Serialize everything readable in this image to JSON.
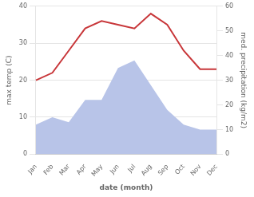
{
  "chart_data": {
    "type": "line",
    "categories": [
      "Jan",
      "Feb",
      "Mar",
      "Apr",
      "May",
      "Jun",
      "Jul",
      "Aug",
      "Sep",
      "Oct",
      "Nov",
      "Dec"
    ],
    "series": [
      {
        "type": "area",
        "color": "#b8c4e8",
        "axis": "y2",
        "values": [
          12,
          15,
          13,
          22,
          22,
          35,
          38,
          28,
          18,
          12,
          10,
          10
        ]
      },
      {
        "type": "line",
        "color": "#c8373a",
        "values": [
          20,
          22,
          28,
          34,
          36,
          35,
          34,
          38,
          35,
          28,
          23,
          23
        ]
      }
    ],
    "xlabel": "date (month)",
    "ylabel": "max temp (C)",
    "y2label": "med. precipitation (kg/m2)",
    "ylim": [
      0,
      40
    ],
    "yticks": [
      0,
      10,
      20,
      30,
      40
    ],
    "y2lim": [
      0,
      60
    ],
    "y2ticks": [
      0,
      10,
      20,
      30,
      40,
      50,
      60
    ],
    "grid": true
  }
}
